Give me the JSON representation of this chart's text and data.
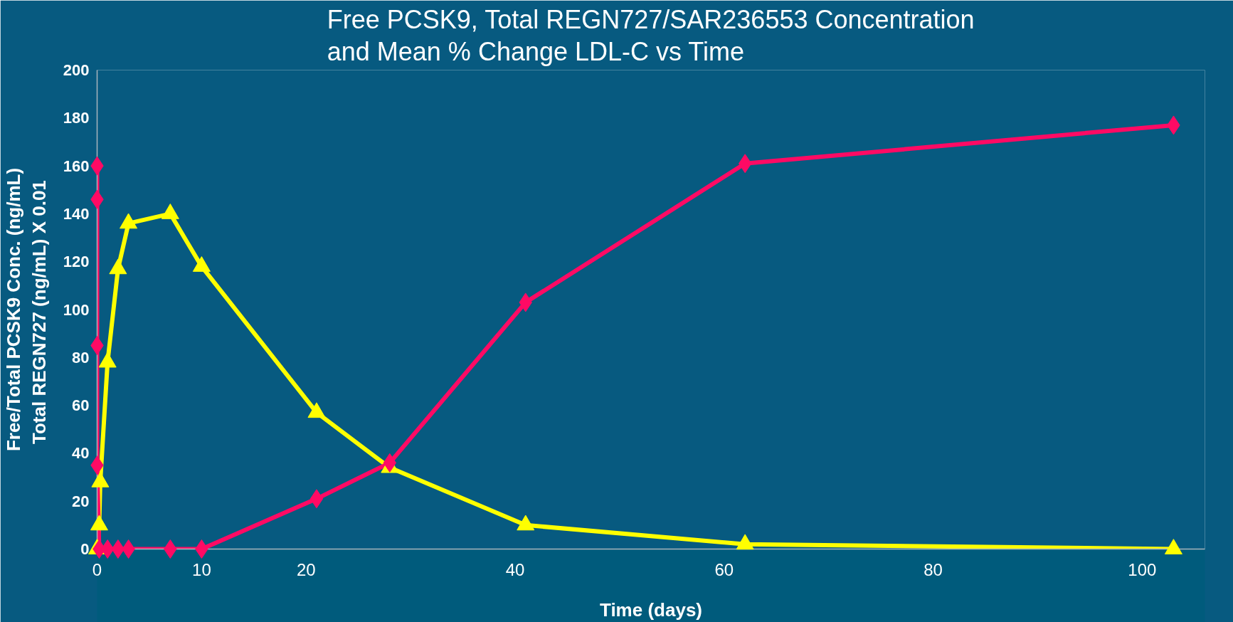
{
  "chart_data": {
    "type": "line",
    "title": "Free PCSK9, Total REGN727/SAR236553 Concentration\nand Mean % Change LDL-C vs Time",
    "xlabel": "Time (days)",
    "ylabel": "Free/Total PCSK9 Conc. (ng/mL)\nTotal REGN727 (ng/mL)  X 0.01",
    "xlim": [
      0,
      106
    ],
    "xticks": [
      0,
      10,
      20,
      40,
      60,
      80,
      100
    ],
    "ylim": [
      0,
      200
    ],
    "yticks": [
      0,
      20,
      40,
      60,
      80,
      100,
      120,
      140,
      160,
      180,
      200
    ],
    "series": [
      {
        "color": "#ff0a64",
        "marker": "diamond",
        "x": [
          0,
          0,
          0,
          0,
          0.2,
          1,
          2,
          3,
          7,
          10,
          21,
          28,
          41,
          62,
          103
        ],
        "values": [
          160,
          146,
          85,
          35,
          0,
          0,
          0,
          0,
          0,
          0,
          21,
          36,
          103,
          161,
          177
        ]
      },
      {
        "color": "#ffff00",
        "marker": "triangle",
        "x": [
          0,
          0.2,
          0.3,
          1,
          2,
          3,
          7,
          10,
          21,
          28,
          41,
          62,
          103
        ],
        "values": [
          0,
          10,
          28,
          78,
          117,
          136,
          140,
          118,
          57,
          34,
          10,
          2,
          0
        ]
      }
    ]
  }
}
